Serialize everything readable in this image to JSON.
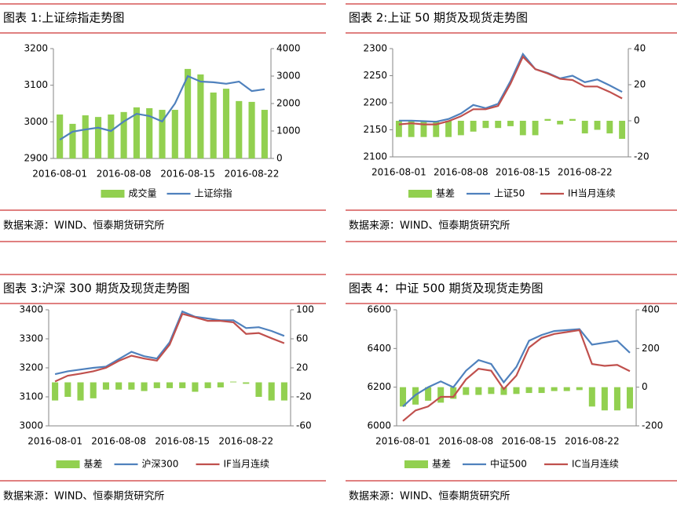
{
  "chart_data": [
    {
      "type": "combo",
      "title": "图表 1:上证综指走势图",
      "source": "数据来源：WIND、恒泰期货研究所",
      "categories": [
        "2016-08-01",
        null,
        null,
        null,
        null,
        "2016-08-08",
        null,
        null,
        null,
        null,
        "2016-08-15",
        null,
        null,
        null,
        null,
        "2016-08-22",
        null
      ],
      "ylim": [
        2900,
        3200
      ],
      "yticks": [
        2900,
        3000,
        3100,
        3200
      ],
      "y2lim": [
        0,
        4000
      ],
      "y2ticks": [
        0,
        1000,
        2000,
        3000,
        4000
      ],
      "series": [
        {
          "name": "成交量",
          "color": "#92d050",
          "kind": "bar",
          "axis": "y2",
          "values": [
            1600,
            1260,
            1570,
            1510,
            1600,
            1690,
            1860,
            1830,
            1770,
            1770,
            3260,
            3060,
            2400,
            2540,
            2090,
            2060,
            1770
          ]
        },
        {
          "name": "上证综指",
          "color": "#4f81bd",
          "kind": "line",
          "values": [
            2951,
            2973,
            2979,
            2984,
            2975,
            3001,
            3022,
            3016,
            3001,
            3050,
            3125,
            3110,
            3108,
            3104,
            3110,
            3084,
            3089
          ]
        }
      ]
    },
    {
      "type": "combo",
      "title": "图表 2:上证 50 期货及现货走势图",
      "source": "数据来源：WIND、恒泰期货研究所",
      "categories": [
        "2016-08-01",
        null,
        null,
        null,
        null,
        "2016-08-08",
        null,
        null,
        null,
        null,
        "2016-08-15",
        null,
        null,
        null,
        null,
        "2016-08-22",
        null,
        null,
        null
      ],
      "ylim": [
        2100,
        2300
      ],
      "yticks": [
        2100,
        2150,
        2200,
        2250,
        2300
      ],
      "y2lim": [
        -20,
        40
      ],
      "y2ticks": [
        -20,
        0,
        20,
        40
      ],
      "series": [
        {
          "name": "基差",
          "color": "#92d050",
          "kind": "bar",
          "axis": "y2",
          "values": [
            -9,
            -9,
            -9,
            -9,
            -9,
            -8,
            -6,
            -4,
            -4,
            -3,
            -8,
            -8,
            1,
            -2,
            1,
            -7,
            -5,
            -7,
            -10
          ]
        },
        {
          "name": "上证50",
          "color": "#4f81bd",
          "kind": "line",
          "values": [
            2167,
            2167,
            2166,
            2165,
            2170,
            2180,
            2196,
            2190,
            2198,
            2240,
            2290,
            2262,
            2255,
            2245,
            2250,
            2238,
            2243,
            2232,
            2220
          ]
        },
        {
          "name": "IH当月连续",
          "color": "#c0504d",
          "kind": "line",
          "values": [
            2160,
            2162,
            2160,
            2160,
            2166,
            2175,
            2188,
            2188,
            2194,
            2235,
            2285,
            2262,
            2254,
            2244,
            2242,
            2230,
            2230,
            2220,
            2208
          ]
        }
      ]
    },
    {
      "type": "combo",
      "title": "图表 3:沪深 300 期货及现货走势图",
      "source": "数据来源：WIND、恒泰期货研究所",
      "categories": [
        "2016-08-01",
        null,
        null,
        null,
        null,
        "2016-08-08",
        null,
        null,
        null,
        null,
        "2016-08-15",
        null,
        null,
        null,
        null,
        "2016-08-22",
        null,
        null,
        null
      ],
      "ylim": [
        3000,
        3400
      ],
      "yticks": [
        3000,
        3100,
        3200,
        3300,
        3400
      ],
      "y2lim": [
        -60,
        100
      ],
      "y2ticks": [
        -60,
        -20,
        20,
        60,
        100
      ],
      "series": [
        {
          "name": "基差",
          "color": "#92d050",
          "kind": "bar",
          "axis": "y2",
          "values": [
            -25,
            -20,
            -25,
            -22,
            -10,
            -10,
            -10,
            -12,
            -8,
            -8,
            -8,
            -13,
            -8,
            -7,
            1,
            -2,
            -20,
            -25,
            -25
          ]
        },
        {
          "name": "沪深300",
          "color": "#4f81bd",
          "kind": "line",
          "values": [
            3178,
            3188,
            3194,
            3200,
            3204,
            3230,
            3255,
            3240,
            3232,
            3288,
            3394,
            3376,
            3370,
            3364,
            3364,
            3337,
            3340,
            3327,
            3310
          ]
        },
        {
          "name": "IF当月连续",
          "color": "#c0504d",
          "kind": "line",
          "values": [
            3153,
            3173,
            3180,
            3188,
            3200,
            3224,
            3242,
            3232,
            3225,
            3280,
            3386,
            3374,
            3362,
            3362,
            3357,
            3317,
            3320,
            3302,
            3285
          ]
        }
      ]
    },
    {
      "type": "combo",
      "title": "图表 4：中证 500 期货及现货走势图",
      "source": "数据来源：WIND、恒泰期货研究所",
      "categories": [
        "2016-08-01",
        null,
        null,
        null,
        null,
        "2016-08-08",
        null,
        null,
        null,
        null,
        "2016-08-15",
        null,
        null,
        null,
        null,
        "2016-08-22",
        null,
        null,
        null
      ],
      "ylim": [
        6000,
        6600
      ],
      "yticks": [
        6000,
        6200,
        6400,
        6600
      ],
      "y2lim": [
        -200,
        400
      ],
      "y2ticks": [
        -200,
        0,
        200,
        400
      ],
      "series": [
        {
          "name": "基差",
          "color": "#92d050",
          "kind": "bar",
          "axis": "y2",
          "values": [
            -100,
            -90,
            -70,
            -80,
            -60,
            -40,
            -40,
            -35,
            -40,
            -35,
            -30,
            -30,
            -20,
            -20,
            -15,
            -100,
            -120,
            -120,
            -110
          ]
        },
        {
          "name": "中证500",
          "color": "#4f81bd",
          "kind": "line",
          "values": [
            6100,
            6160,
            6200,
            6230,
            6200,
            6285,
            6340,
            6320,
            6225,
            6305,
            6440,
            6470,
            6490,
            6495,
            6500,
            6420,
            6430,
            6440,
            6378
          ]
        },
        {
          "name": "IC当月连续",
          "color": "#c0504d",
          "kind": "line",
          "values": [
            6025,
            6080,
            6100,
            6150,
            6150,
            6240,
            6295,
            6285,
            6190,
            6260,
            6405,
            6455,
            6475,
            6485,
            6495,
            6320,
            6310,
            6315,
            6283
          ]
        }
      ]
    }
  ]
}
